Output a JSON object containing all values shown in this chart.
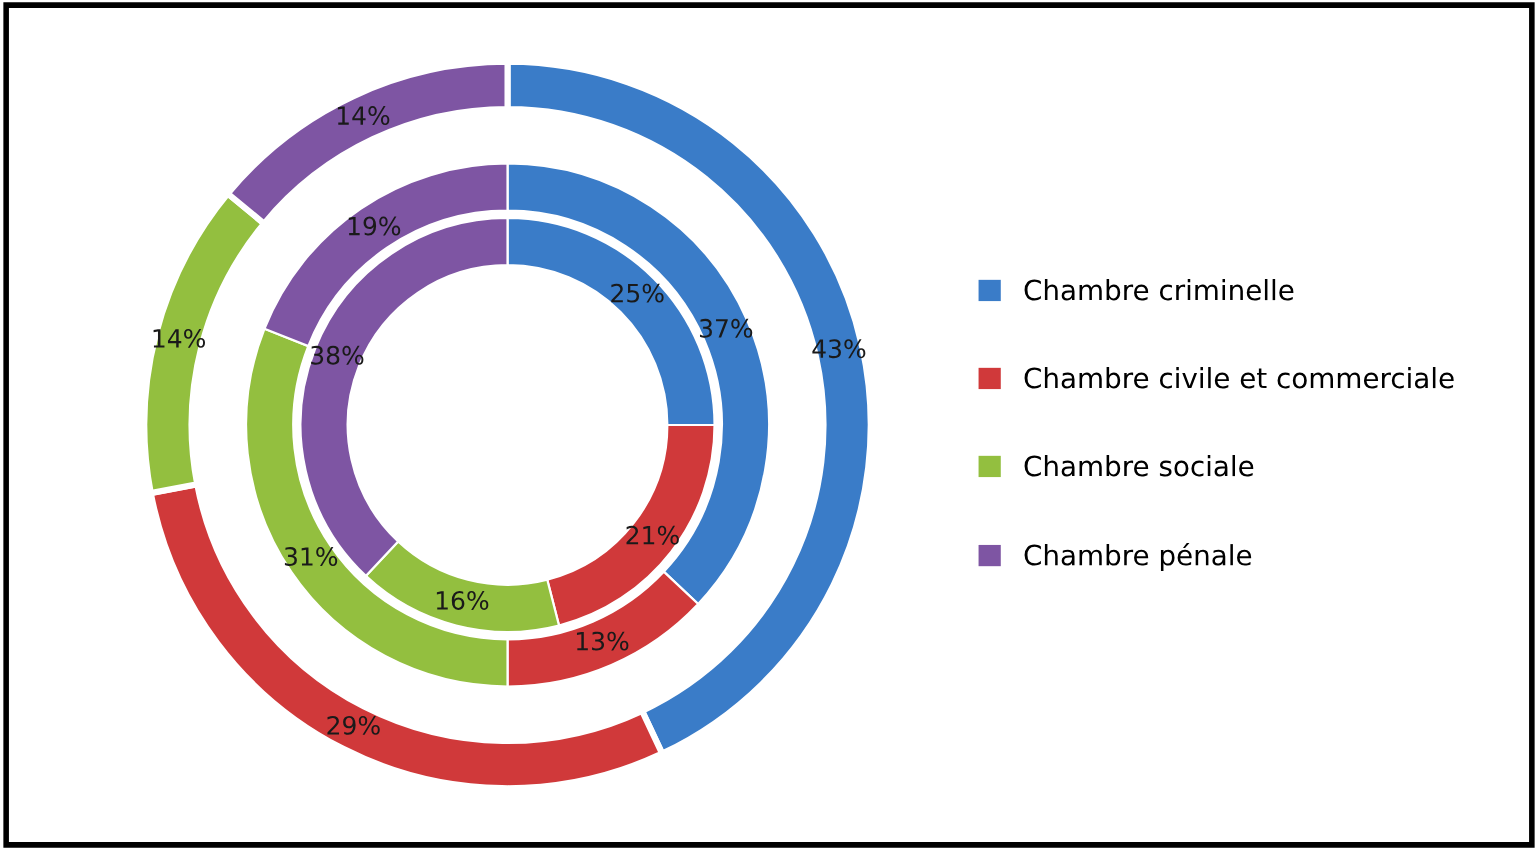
{
  "chart_data": {
    "type": "donut",
    "categories": [
      "Chambre criminelle",
      "Chambre civile et commerciale",
      "Chambre sociale",
      "Chambre pénale"
    ],
    "colors": [
      "#3a7cc8",
      "#d0393a",
      "#93bf3f",
      "#7e55a3"
    ],
    "series": [
      {
        "values": [
          43,
          29,
          14,
          14
        ],
        "value_labels": [
          "43%",
          "29%",
          "14%",
          "14%"
        ]
      },
      {
        "values": [
          37,
          13,
          31,
          19
        ],
        "value_labels": [
          "37%",
          "13%",
          "31%",
          "19%"
        ]
      },
      {
        "values": [
          25,
          21,
          16,
          38
        ],
        "value_labels": [
          "25%",
          "21%",
          "16%",
          "38%"
        ]
      }
    ],
    "legend": "right"
  }
}
